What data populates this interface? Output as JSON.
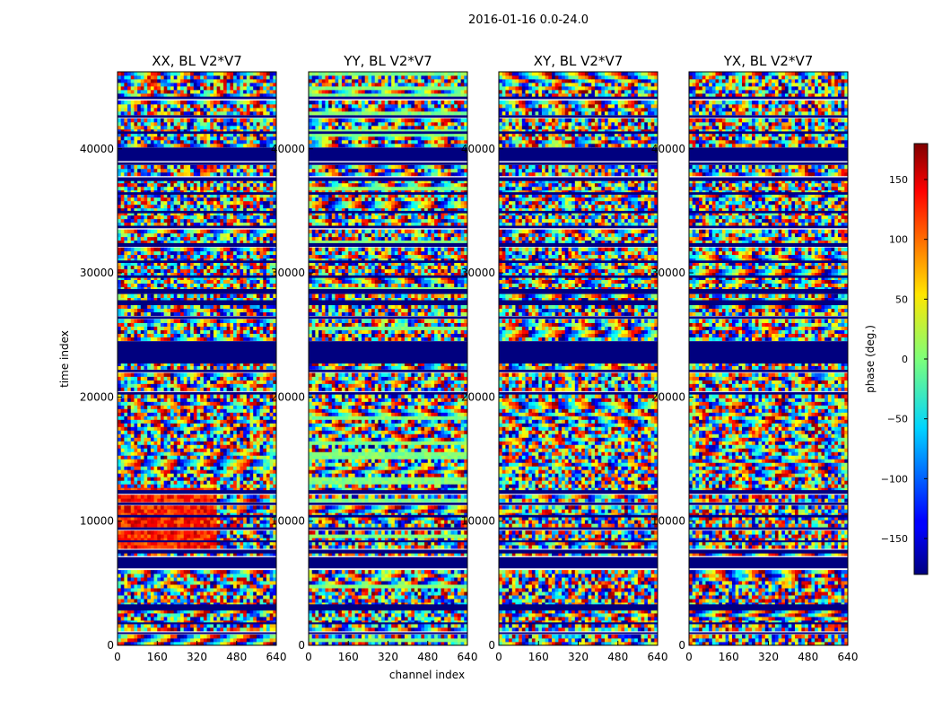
{
  "figure": {
    "suptitle": "2016-01-16 0.0-24.0"
  },
  "chart_data": {
    "type": "heatmap",
    "panels": [
      {
        "title": "XX, BL V2*V7"
      },
      {
        "title": "YY, BL V2*V7"
      },
      {
        "title": "XY, BL V2*V7"
      },
      {
        "title": "YX, BL V2*V7"
      }
    ],
    "xlabel": "channel index",
    "ylabel": "time index",
    "xlim": [
      0,
      640
    ],
    "ylim": [
      0,
      46200
    ],
    "xticks": [
      0,
      160,
      320,
      480,
      640
    ],
    "yticks": [
      0,
      10000,
      20000,
      30000,
      40000
    ],
    "colorbar": {
      "label": "phase (deg.)",
      "range": [
        -180,
        180
      ],
      "ticks": [
        -150,
        -100,
        -50,
        0,
        50,
        100,
        150
      ],
      "colormap": "jet"
    },
    "flagged_time_ranges": [
      [
        900,
        1050
      ],
      [
        1700,
        1850
      ],
      [
        2800,
        3300
      ],
      [
        6200,
        7100
      ],
      [
        7400,
        7700
      ],
      [
        8300,
        8450
      ],
      [
        9300,
        9500
      ],
      [
        10300,
        10500
      ],
      [
        11300,
        11500
      ],
      [
        12200,
        12500
      ],
      [
        20200,
        20400
      ],
      [
        22000,
        22200
      ],
      [
        22700,
        24500
      ],
      [
        26300,
        26500
      ],
      [
        27400,
        27800
      ],
      [
        28300,
        28700
      ],
      [
        29600,
        29800
      ],
      [
        30800,
        31000
      ],
      [
        32100,
        32400
      ],
      [
        33600,
        33800
      ],
      [
        34800,
        35000
      ],
      [
        36300,
        36500
      ],
      [
        37400,
        37700
      ],
      [
        38700,
        38900
      ],
      [
        39000,
        40100
      ],
      [
        41200,
        41400
      ],
      [
        42500,
        42700
      ],
      [
        44000,
        44200
      ]
    ]
  }
}
